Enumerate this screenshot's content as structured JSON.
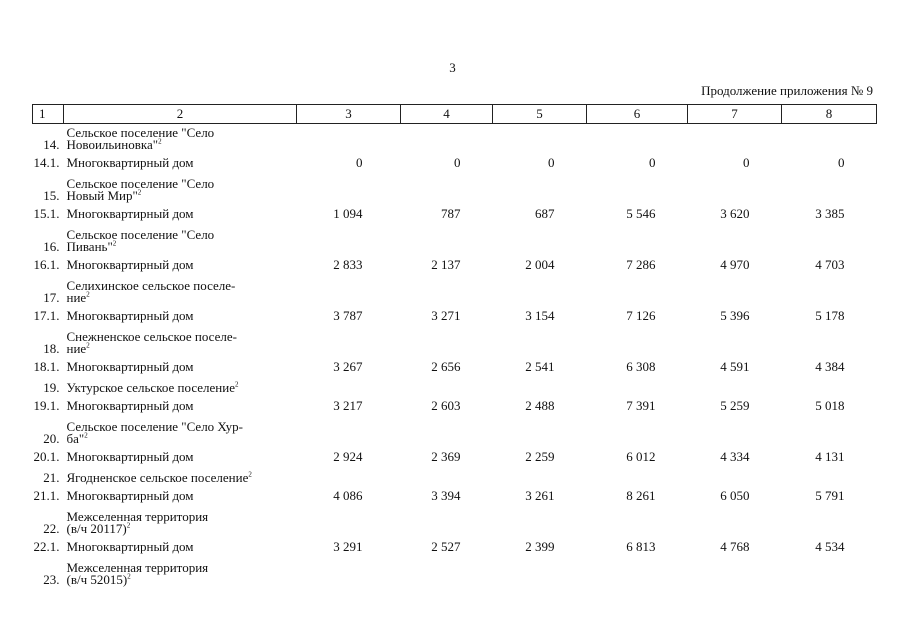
{
  "page_number": "3",
  "continuation": "Продолжение приложения № 9",
  "headers": [
    "1",
    "2",
    "3",
    "4",
    "5",
    "6",
    "7",
    "8"
  ],
  "rows": [
    {
      "num": "14.",
      "name_lines": [
        "Сельское поселение \"Село",
        "Новоильиновка\""
      ],
      "sup": "2",
      "values": [
        "",
        "",
        "",
        "",
        "",
        ""
      ]
    },
    {
      "num": "14.1.",
      "name_lines": [
        "Многоквартирный дом"
      ],
      "sup": "",
      "values": [
        "0",
        "0",
        "0",
        "0",
        "0",
        "0"
      ]
    },
    {
      "num": "15.",
      "name_lines": [
        "Сельское поселение \"Село",
        "Новый Мир\""
      ],
      "sup": "2",
      "values": [
        "",
        "",
        "",
        "",
        "",
        ""
      ]
    },
    {
      "num": "15.1.",
      "name_lines": [
        "Многоквартирный дом"
      ],
      "sup": "",
      "values": [
        "1 094",
        "787",
        "687",
        "5 546",
        "3 620",
        "3 385"
      ]
    },
    {
      "num": "16.",
      "name_lines": [
        "Сельское поселение \"Село",
        "Пивань\""
      ],
      "sup": "2",
      "values": [
        "",
        "",
        "",
        "",
        "",
        ""
      ]
    },
    {
      "num": "16.1.",
      "name_lines": [
        "Многоквартирный дом"
      ],
      "sup": "",
      "values": [
        "2 833",
        "2 137",
        "2 004",
        "7 286",
        "4 970",
        "4 703"
      ]
    },
    {
      "num": "17.",
      "name_lines": [
        "Селихинское сельское поселе-",
        "ние"
      ],
      "sup": "2",
      "values": [
        "",
        "",
        "",
        "",
        "",
        ""
      ]
    },
    {
      "num": "17.1.",
      "name_lines": [
        "Многоквартирный дом"
      ],
      "sup": "",
      "values": [
        "3 787",
        "3 271",
        "3 154",
        "7 126",
        "5 396",
        "5 178"
      ]
    },
    {
      "num": "18.",
      "name_lines": [
        "Снежненское сельское поселе-",
        "ние"
      ],
      "sup": "2",
      "values": [
        "",
        "",
        "",
        "",
        "",
        ""
      ]
    },
    {
      "num": "18.1.",
      "name_lines": [
        "Многоквартирный дом"
      ],
      "sup": "",
      "values": [
        "3 267",
        "2 656",
        "2 541",
        "6 308",
        "4 591",
        "4 384"
      ]
    },
    {
      "num": "19.",
      "name_lines": [
        "Уктурское сельское поселение"
      ],
      "sup": "2",
      "values": [
        "",
        "",
        "",
        "",
        "",
        ""
      ]
    },
    {
      "num": "19.1.",
      "name_lines": [
        "Многоквартирный дом"
      ],
      "sup": "",
      "values": [
        "3 217",
        "2 603",
        "2 488",
        "7 391",
        "5 259",
        "5 018"
      ]
    },
    {
      "num": "20.",
      "name_lines": [
        "Сельское поселение \"Село Хур-",
        "ба\""
      ],
      "sup": "2",
      "values": [
        "",
        "",
        "",
        "",
        "",
        ""
      ]
    },
    {
      "num": "20.1.",
      "name_lines": [
        "Многоквартирный дом"
      ],
      "sup": "",
      "values": [
        "2 924",
        "2 369",
        "2 259",
        "6 012",
        "4 334",
        "4 131"
      ]
    },
    {
      "num": "21.",
      "name_lines": [
        "Ягодненское сельское поселение"
      ],
      "sup": "2",
      "values": [
        "",
        "",
        "",
        "",
        "",
        ""
      ]
    },
    {
      "num": "21.1.",
      "name_lines": [
        "Многоквартирный дом"
      ],
      "sup": "",
      "values": [
        "4 086",
        "3 394",
        "3 261",
        "8 261",
        "6 050",
        "5 791"
      ]
    },
    {
      "num": "22.",
      "name_lines": [
        "Межселенная территория",
        "(в/ч 20117)"
      ],
      "sup": "2",
      "values": [
        "",
        "",
        "",
        "",
        "",
        ""
      ]
    },
    {
      "num": "22.1.",
      "name_lines": [
        "Многоквартирный дом"
      ],
      "sup": "",
      "values": [
        "3 291",
        "2 527",
        "2 399",
        "6 813",
        "4 768",
        "4 534"
      ]
    },
    {
      "num": "23.",
      "name_lines": [
        "Межселенная территория",
        "(в/ч 52015)"
      ],
      "sup": "2",
      "values": [
        "",
        "",
        "",
        "",
        "",
        ""
      ]
    }
  ]
}
